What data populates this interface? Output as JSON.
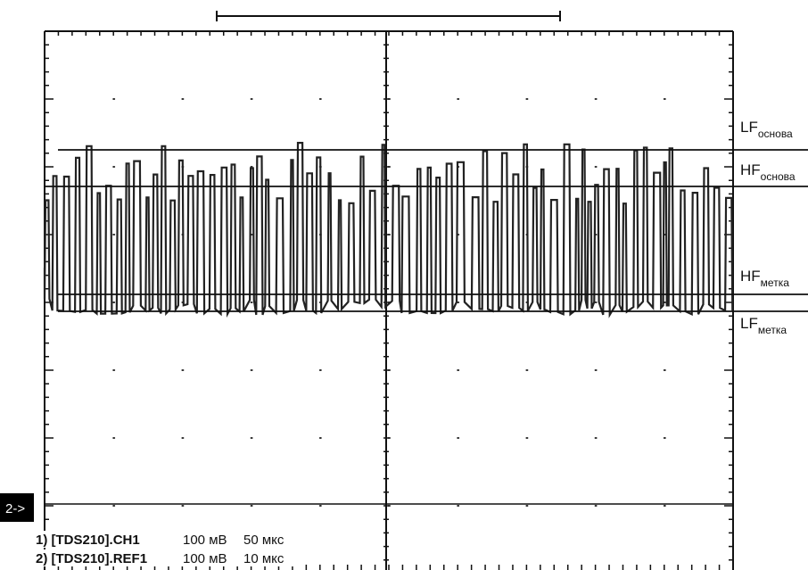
{
  "levels": [
    {
      "main": "LF",
      "sub": "основа"
    },
    {
      "main": "HF",
      "sub": "основа"
    },
    {
      "main": "HF",
      "sub": "метка"
    },
    {
      "main": "LF",
      "sub": "метка"
    }
  ],
  "marker": "2->",
  "channels": [
    {
      "source": "1) [TDS210].CH1",
      "volts": "100 мВ",
      "time": "50 мкс"
    },
    {
      "source": "2) [TDS210].REF1",
      "volts": "100 мВ",
      "time": "10 мкс"
    }
  ]
}
